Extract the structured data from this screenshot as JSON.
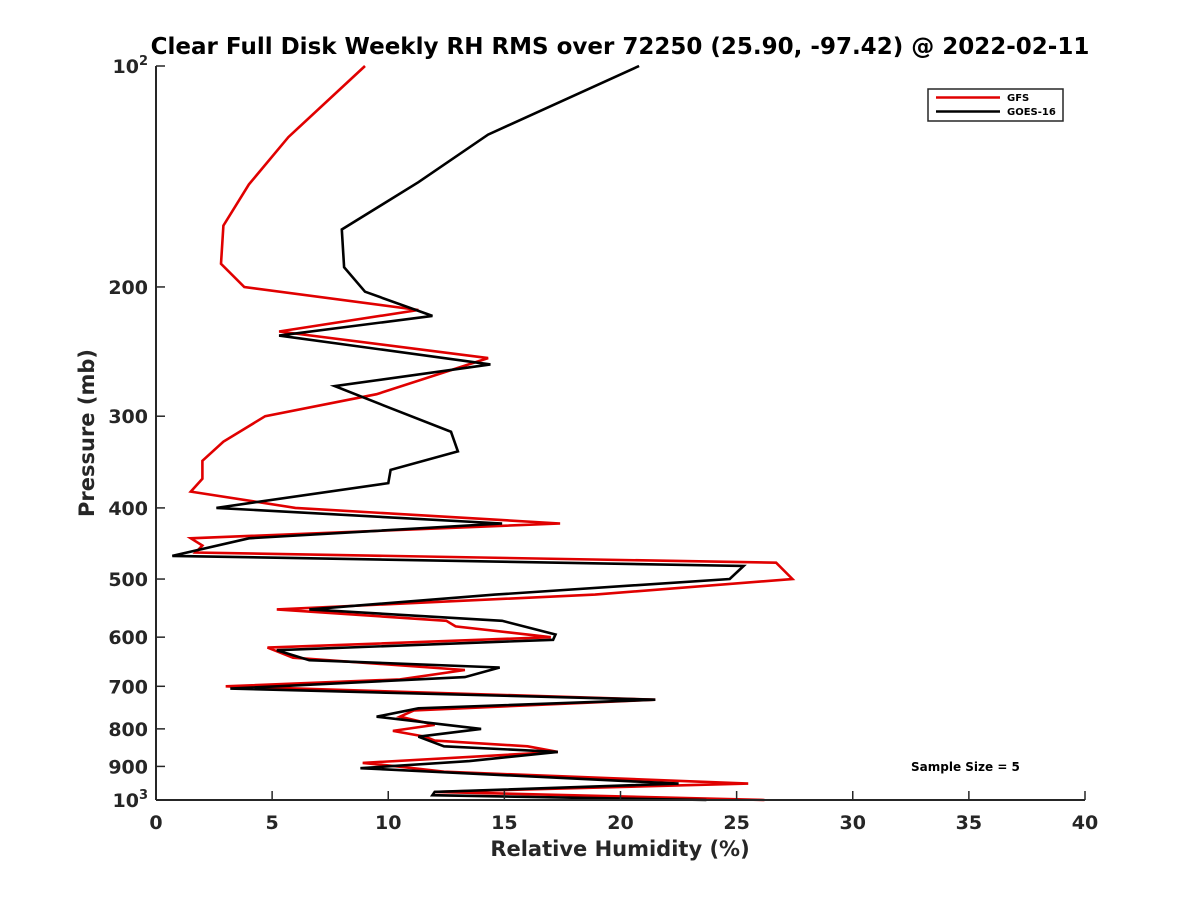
{
  "chart_data": {
    "type": "line",
    "title": "Clear Full Disk Weekly RH RMS over 72250 (25.90, -97.42) @ 2022-02-11",
    "xlabel": "Relative Humidity (%)",
    "ylabel": "Pressure (mb)",
    "xlim": [
      0,
      40
    ],
    "ylim": [
      100,
      1000
    ],
    "y_scale": "log",
    "y_reversed": true,
    "x_ticks": [
      "0",
      "5",
      "10",
      "15",
      "20",
      "25",
      "30",
      "35",
      "40"
    ],
    "y_ticks": [
      {
        "value": 100,
        "base": "10",
        "exp": "2"
      },
      {
        "value": 200,
        "label": "200"
      },
      {
        "value": 300,
        "label": "300"
      },
      {
        "value": 400,
        "label": "400"
      },
      {
        "value": 500,
        "label": "500"
      },
      {
        "value": 600,
        "label": "600"
      },
      {
        "value": 700,
        "label": "700"
      },
      {
        "value": 800,
        "label": "800"
      },
      {
        "value": 900,
        "label": "900"
      },
      {
        "value": 1000,
        "base": "10",
        "exp": "3"
      }
    ],
    "legend_position": "top-right",
    "annotation": "Sample Size = 5",
    "series": [
      {
        "name": "GFS",
        "color": "#e00000",
        "points": [
          [
            9.0,
            100
          ],
          [
            5.7,
            125
          ],
          [
            4.0,
            145
          ],
          [
            2.9,
            165
          ],
          [
            2.8,
            186
          ],
          [
            3.8,
            200
          ],
          [
            11.3,
            215
          ],
          [
            5.3,
            230
          ],
          [
            14.3,
            250
          ],
          [
            9.5,
            280
          ],
          [
            4.7,
            300
          ],
          [
            2.9,
            325
          ],
          [
            2.0,
            345
          ],
          [
            2.0,
            365
          ],
          [
            1.5,
            380
          ],
          [
            6.0,
            400
          ],
          [
            17.4,
            420
          ],
          [
            1.5,
            440
          ],
          [
            2.0,
            450
          ],
          [
            1.7,
            460
          ],
          [
            26.7,
            475
          ],
          [
            27.4,
            500
          ],
          [
            18.9,
            525
          ],
          [
            5.2,
            550
          ],
          [
            12.5,
            570
          ],
          [
            12.9,
            580
          ],
          [
            17.0,
            600
          ],
          [
            4.8,
            620
          ],
          [
            5.9,
            640
          ],
          [
            13.3,
            665
          ],
          [
            10.5,
            685
          ],
          [
            3.0,
            700
          ],
          [
            21.5,
            730
          ],
          [
            11.1,
            755
          ],
          [
            10.5,
            770
          ],
          [
            12.0,
            790
          ],
          [
            10.2,
            805
          ],
          [
            11.6,
            820
          ],
          [
            12.0,
            830
          ],
          [
            16.0,
            845
          ],
          [
            17.3,
            860
          ],
          [
            8.9,
            890
          ],
          [
            10.4,
            900
          ],
          [
            12.4,
            915
          ],
          [
            25.5,
            950
          ],
          [
            12.0,
            975
          ],
          [
            26.2,
            1000
          ]
        ]
      },
      {
        "name": "GOES-16",
        "color": "#000000",
        "points": [
          [
            20.8,
            100
          ],
          [
            14.3,
            124
          ],
          [
            11.3,
            144
          ],
          [
            8.0,
            167
          ],
          [
            8.1,
            188
          ],
          [
            9.0,
            203
          ],
          [
            11.9,
            219
          ],
          [
            5.3,
            233
          ],
          [
            14.4,
            255
          ],
          [
            7.7,
            273
          ],
          [
            9.8,
            290
          ],
          [
            12.7,
            315
          ],
          [
            13.0,
            335
          ],
          [
            10.1,
            355
          ],
          [
            10.0,
            370
          ],
          [
            2.6,
            400
          ],
          [
            14.9,
            420
          ],
          [
            4.0,
            440
          ],
          [
            0.7,
            465
          ],
          [
            25.3,
            480
          ],
          [
            24.7,
            500
          ],
          [
            14.6,
            525
          ],
          [
            6.6,
            550
          ],
          [
            14.9,
            570
          ],
          [
            17.2,
            595
          ],
          [
            17.1,
            605
          ],
          [
            5.2,
            625
          ],
          [
            6.6,
            645
          ],
          [
            14.8,
            660
          ],
          [
            13.3,
            680
          ],
          [
            3.2,
            705
          ],
          [
            21.5,
            730
          ],
          [
            11.3,
            750
          ],
          [
            9.5,
            770
          ],
          [
            14.0,
            800
          ],
          [
            11.3,
            820
          ],
          [
            12.4,
            845
          ],
          [
            17.3,
            860
          ],
          [
            13.5,
            885
          ],
          [
            8.8,
            905
          ],
          [
            22.5,
            950
          ],
          [
            12.0,
            975
          ],
          [
            11.9,
            985
          ],
          [
            23.7,
            1000
          ]
        ]
      }
    ]
  }
}
